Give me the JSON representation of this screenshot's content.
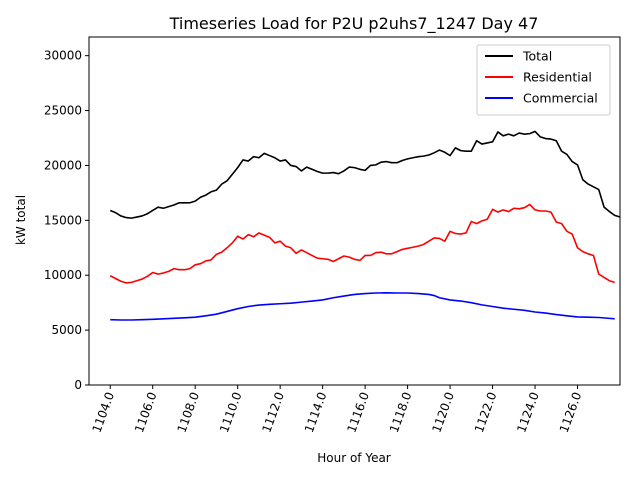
{
  "chart_data": {
    "type": "line",
    "title": "Timeseries Load for P2U p2uhs7_1247  Day 47",
    "xlabel": "Hour of Year",
    "ylabel": "kW total",
    "xlim": [
      1103.0,
      1128.0
    ],
    "ylim": [
      0,
      31700
    ],
    "xticks": [
      1104,
      1106,
      1108,
      1110,
      1112,
      1114,
      1116,
      1118,
      1120,
      1122,
      1124,
      1126
    ],
    "xtick_labels": [
      "1104.0",
      "1106.0",
      "1108.0",
      "1110.0",
      "1112.0",
      "1114.0",
      "1116.0",
      "1118.0",
      "1120.0",
      "1122.0",
      "1124.0",
      "1126.0"
    ],
    "yticks": [
      0,
      5000,
      10000,
      15000,
      20000,
      25000,
      30000
    ],
    "ytick_labels": [
      "0",
      "5000",
      "10000",
      "15000",
      "20000",
      "25000",
      "30000"
    ],
    "grid": false,
    "legend_position": "top-right",
    "series": [
      {
        "name": "Total",
        "color": "#000000",
        "points": [
          [
            1104.0,
            15900
          ],
          [
            1104.25,
            15700
          ],
          [
            1104.5,
            15400
          ],
          [
            1104.75,
            15250
          ],
          [
            1105.0,
            15200
          ],
          [
            1105.25,
            15300
          ],
          [
            1105.5,
            15400
          ],
          [
            1105.75,
            15600
          ],
          [
            1106.0,
            15900
          ],
          [
            1106.25,
            16200
          ],
          [
            1106.5,
            16100
          ],
          [
            1106.75,
            16250
          ],
          [
            1107.0,
            16400
          ],
          [
            1107.25,
            16600
          ],
          [
            1107.5,
            16600
          ],
          [
            1107.75,
            16600
          ],
          [
            1108.0,
            16750
          ],
          [
            1108.25,
            17100
          ],
          [
            1108.5,
            17300
          ],
          [
            1108.75,
            17600
          ],
          [
            1109.0,
            17750
          ],
          [
            1109.25,
            18300
          ],
          [
            1109.5,
            18600
          ],
          [
            1109.75,
            19200
          ],
          [
            1110.0,
            19800
          ],
          [
            1110.25,
            20500
          ],
          [
            1110.5,
            20400
          ],
          [
            1110.75,
            20800
          ],
          [
            1111.0,
            20700
          ],
          [
            1111.25,
            21100
          ],
          [
            1111.5,
            20900
          ],
          [
            1111.75,
            20700
          ],
          [
            1112.0,
            20400
          ],
          [
            1112.25,
            20500
          ],
          [
            1112.5,
            20000
          ],
          [
            1112.75,
            19900
          ],
          [
            1113.0,
            19500
          ],
          [
            1113.25,
            19850
          ],
          [
            1113.5,
            19650
          ],
          [
            1113.75,
            19450
          ],
          [
            1114.0,
            19300
          ],
          [
            1114.25,
            19300
          ],
          [
            1114.5,
            19350
          ],
          [
            1114.75,
            19250
          ],
          [
            1115.0,
            19500
          ],
          [
            1115.25,
            19850
          ],
          [
            1115.5,
            19800
          ],
          [
            1115.75,
            19650
          ],
          [
            1116.0,
            19550
          ],
          [
            1116.25,
            20000
          ],
          [
            1116.5,
            20050
          ],
          [
            1116.75,
            20300
          ],
          [
            1117.0,
            20350
          ],
          [
            1117.25,
            20250
          ],
          [
            1117.5,
            20250
          ],
          [
            1117.75,
            20450
          ],
          [
            1118.0,
            20600
          ],
          [
            1118.25,
            20700
          ],
          [
            1118.5,
            20800
          ],
          [
            1118.75,
            20850
          ],
          [
            1119.0,
            20950
          ],
          [
            1119.25,
            21150
          ],
          [
            1119.5,
            21400
          ],
          [
            1119.75,
            21200
          ],
          [
            1120.0,
            20900
          ],
          [
            1120.25,
            21600
          ],
          [
            1120.5,
            21350
          ],
          [
            1120.75,
            21300
          ],
          [
            1121.0,
            21300
          ],
          [
            1121.25,
            22250
          ],
          [
            1121.5,
            21950
          ],
          [
            1121.75,
            22050
          ],
          [
            1122.0,
            22150
          ],
          [
            1122.25,
            23050
          ],
          [
            1122.5,
            22700
          ],
          [
            1122.75,
            22850
          ],
          [
            1123.0,
            22700
          ],
          [
            1123.25,
            22950
          ],
          [
            1123.5,
            22850
          ],
          [
            1123.75,
            22900
          ],
          [
            1124.0,
            23100
          ],
          [
            1124.25,
            22600
          ],
          [
            1124.5,
            22450
          ],
          [
            1124.75,
            22400
          ],
          [
            1125.0,
            22250
          ],
          [
            1125.25,
            21300
          ],
          [
            1125.5,
            21000
          ],
          [
            1125.75,
            20350
          ],
          [
            1126.0,
            20050
          ],
          [
            1126.25,
            18700
          ],
          [
            1126.5,
            18300
          ],
          [
            1126.75,
            18050
          ],
          [
            1127.0,
            17800
          ],
          [
            1127.25,
            16200
          ],
          [
            1127.5,
            15800
          ],
          [
            1127.75,
            15450
          ],
          [
            1128.0,
            15300
          ]
        ]
      },
      {
        "name": "Residential",
        "color": "#ff0000",
        "points": [
          [
            1104.0,
            9950
          ],
          [
            1104.25,
            9700
          ],
          [
            1104.5,
            9450
          ],
          [
            1104.75,
            9300
          ],
          [
            1105.0,
            9350
          ],
          [
            1105.25,
            9500
          ],
          [
            1105.5,
            9650
          ],
          [
            1105.75,
            9900
          ],
          [
            1106.0,
            10250
          ],
          [
            1106.25,
            10100
          ],
          [
            1106.5,
            10200
          ],
          [
            1106.75,
            10350
          ],
          [
            1107.0,
            10600
          ],
          [
            1107.25,
            10500
          ],
          [
            1107.5,
            10500
          ],
          [
            1107.75,
            10600
          ],
          [
            1108.0,
            10950
          ],
          [
            1108.25,
            11050
          ],
          [
            1108.5,
            11300
          ],
          [
            1108.75,
            11400
          ],
          [
            1109.0,
            11900
          ],
          [
            1109.25,
            12100
          ],
          [
            1109.5,
            12500
          ],
          [
            1109.75,
            12950
          ],
          [
            1110.0,
            13550
          ],
          [
            1110.25,
            13300
          ],
          [
            1110.5,
            13700
          ],
          [
            1110.75,
            13500
          ],
          [
            1111.0,
            13850
          ],
          [
            1111.25,
            13650
          ],
          [
            1111.5,
            13450
          ],
          [
            1111.75,
            12950
          ],
          [
            1112.0,
            13100
          ],
          [
            1112.25,
            12650
          ],
          [
            1112.5,
            12500
          ],
          [
            1112.75,
            12000
          ],
          [
            1113.0,
            12300
          ],
          [
            1113.25,
            12050
          ],
          [
            1113.5,
            11800
          ],
          [
            1113.75,
            11550
          ],
          [
            1114.0,
            11500
          ],
          [
            1114.25,
            11450
          ],
          [
            1114.5,
            11250
          ],
          [
            1114.75,
            11500
          ],
          [
            1115.0,
            11750
          ],
          [
            1115.25,
            11650
          ],
          [
            1115.5,
            11450
          ],
          [
            1115.75,
            11350
          ],
          [
            1116.0,
            11800
          ],
          [
            1116.25,
            11800
          ],
          [
            1116.5,
            12050
          ],
          [
            1116.75,
            12100
          ],
          [
            1117.0,
            11950
          ],
          [
            1117.25,
            11950
          ],
          [
            1117.5,
            12150
          ],
          [
            1117.75,
            12350
          ],
          [
            1118.0,
            12450
          ],
          [
            1118.25,
            12550
          ],
          [
            1118.5,
            12650
          ],
          [
            1118.75,
            12800
          ],
          [
            1119.0,
            13100
          ],
          [
            1119.25,
            13400
          ],
          [
            1119.5,
            13350
          ],
          [
            1119.75,
            13100
          ],
          [
            1120.0,
            14000
          ],
          [
            1120.25,
            13800
          ],
          [
            1120.5,
            13750
          ],
          [
            1120.75,
            13850
          ],
          [
            1121.0,
            14900
          ],
          [
            1121.25,
            14700
          ],
          [
            1121.5,
            14950
          ],
          [
            1121.75,
            15100
          ],
          [
            1122.0,
            16000
          ],
          [
            1122.25,
            15750
          ],
          [
            1122.5,
            15950
          ],
          [
            1122.75,
            15800
          ],
          [
            1123.0,
            16100
          ],
          [
            1123.25,
            16050
          ],
          [
            1123.5,
            16150
          ],
          [
            1123.75,
            16450
          ],
          [
            1124.0,
            15950
          ],
          [
            1124.25,
            15850
          ],
          [
            1124.5,
            15850
          ],
          [
            1124.75,
            15750
          ],
          [
            1125.0,
            14850
          ],
          [
            1125.25,
            14700
          ],
          [
            1125.5,
            14000
          ],
          [
            1125.75,
            13750
          ],
          [
            1126.0,
            12500
          ],
          [
            1126.25,
            12150
          ],
          [
            1126.5,
            11950
          ],
          [
            1126.75,
            11800
          ],
          [
            1127.0,
            10100
          ],
          [
            1127.25,
            9800
          ],
          [
            1127.5,
            9500
          ],
          [
            1127.75,
            9350
          ]
        ]
      },
      {
        "name": "Commercial",
        "color": "#0000ff",
        "points": [
          [
            1104.0,
            5950
          ],
          [
            1104.5,
            5920
          ],
          [
            1105.0,
            5920
          ],
          [
            1105.5,
            5950
          ],
          [
            1106.0,
            5980
          ],
          [
            1106.5,
            6030
          ],
          [
            1107.0,
            6070
          ],
          [
            1107.5,
            6120
          ],
          [
            1108.0,
            6180
          ],
          [
            1108.5,
            6300
          ],
          [
            1109.0,
            6450
          ],
          [
            1109.5,
            6700
          ],
          [
            1110.0,
            6950
          ],
          [
            1110.5,
            7150
          ],
          [
            1111.0,
            7280
          ],
          [
            1111.5,
            7350
          ],
          [
            1112.0,
            7400
          ],
          [
            1112.5,
            7450
          ],
          [
            1113.0,
            7550
          ],
          [
            1113.5,
            7650
          ],
          [
            1114.0,
            7750
          ],
          [
            1114.5,
            7950
          ],
          [
            1115.0,
            8100
          ],
          [
            1115.5,
            8250
          ],
          [
            1116.0,
            8330
          ],
          [
            1116.5,
            8380
          ],
          [
            1117.0,
            8400
          ],
          [
            1117.5,
            8380
          ],
          [
            1118.0,
            8380
          ],
          [
            1118.5,
            8330
          ],
          [
            1119.0,
            8250
          ],
          [
            1119.25,
            8150
          ],
          [
            1119.5,
            7950
          ],
          [
            1120.0,
            7750
          ],
          [
            1120.5,
            7650
          ],
          [
            1121.0,
            7500
          ],
          [
            1121.5,
            7300
          ],
          [
            1122.0,
            7150
          ],
          [
            1122.5,
            7000
          ],
          [
            1123.0,
            6900
          ],
          [
            1123.5,
            6800
          ],
          [
            1124.0,
            6650
          ],
          [
            1124.5,
            6550
          ],
          [
            1125.0,
            6420
          ],
          [
            1125.5,
            6300
          ],
          [
            1126.0,
            6200
          ],
          [
            1126.5,
            6180
          ],
          [
            1127.0,
            6150
          ],
          [
            1127.5,
            6070
          ],
          [
            1127.75,
            6030
          ]
        ]
      }
    ]
  }
}
